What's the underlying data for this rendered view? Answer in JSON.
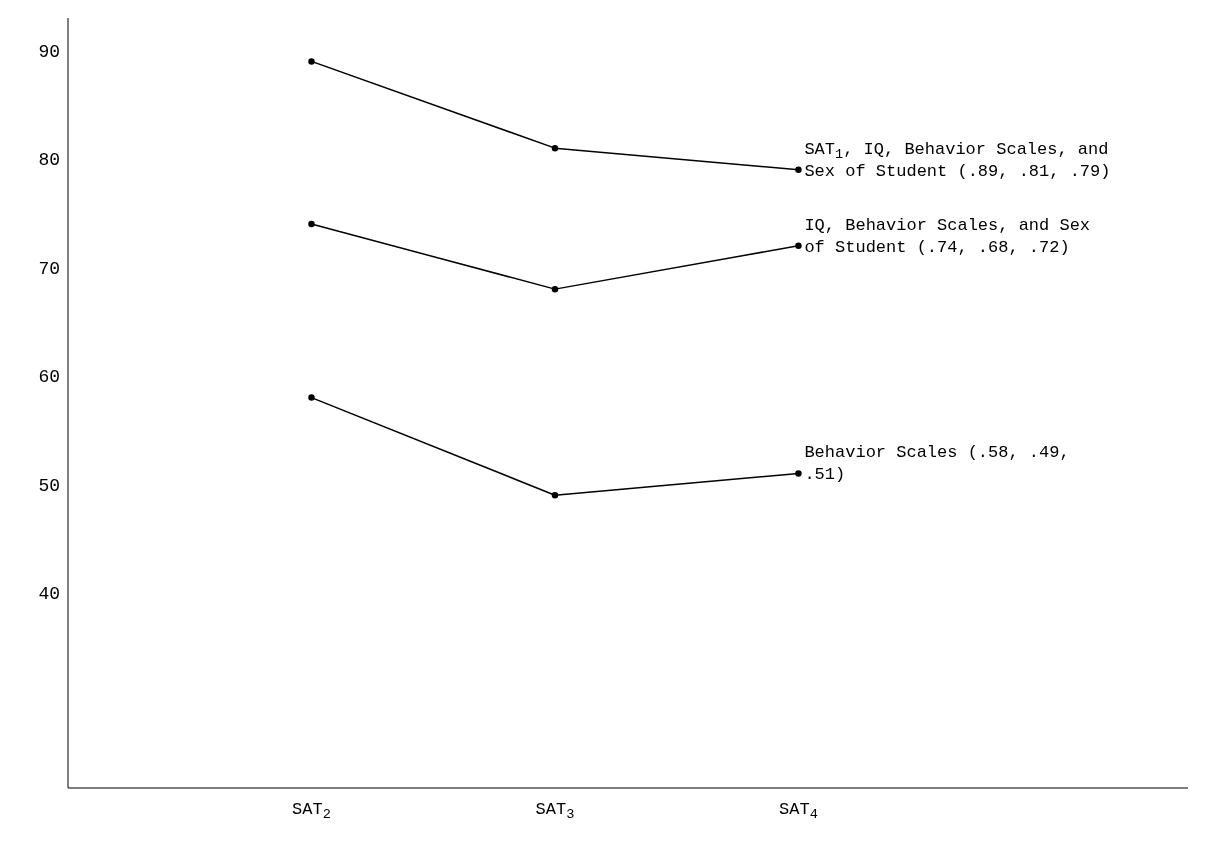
{
  "chart_data": {
    "type": "line",
    "categories": [
      "SAT$_{2}$",
      "SAT$_{3}$",
      "SAT$_{4}$"
    ],
    "series": [
      {
        "name": "SAT$_{1}$, IQ, Behavior Scales, and Sex of Student (.89, .81, .79)",
        "color": "#000000",
        "values": [
          89,
          81,
          79
        ]
      },
      {
        "name": "IQ, Behavior Scales, and Sex of Student (.74, .68, .72)",
        "color": "#000000",
        "values": [
          74,
          68,
          72
        ]
      },
      {
        "name": "Behavior Scales (.58, .49, .51)",
        "color": "#000000",
        "values": [
          58,
          49,
          51
        ]
      }
    ],
    "ylim": [
      22,
      93
    ],
    "yticks": [
      40,
      50,
      60,
      70,
      80,
      90
    ],
    "grid": false,
    "legend": false,
    "marker": "circle",
    "line_style": "solid"
  }
}
